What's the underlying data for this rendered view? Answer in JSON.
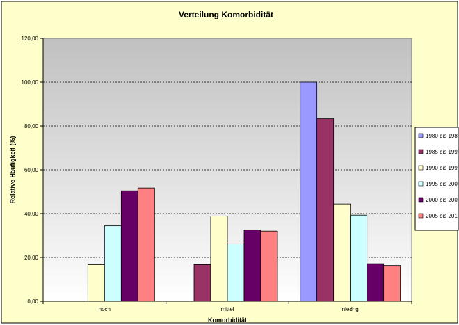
{
  "chart_data": {
    "type": "bar",
    "title": "Verteilung Komorbidität",
    "xlabel": "Komorbidität",
    "ylabel": "Relative Häufigkeit (%)",
    "categories": [
      "hoch",
      "mittel",
      "niedrig"
    ],
    "ylim": [
      0,
      120
    ],
    "yticks": [
      "0,00",
      "20,00",
      "40,00",
      "60,00",
      "80,00",
      "100,00",
      "120,00"
    ],
    "grid": true,
    "legend_position": "right",
    "series": [
      {
        "name": "1980 bis 198",
        "values": [
          0,
          0,
          100.0
        ],
        "color": "#9999ff"
      },
      {
        "name": "1985 bis 199",
        "values": [
          0,
          16.7,
          83.3
        ],
        "color": "#993366"
      },
      {
        "name": "1990 bis 199",
        "values": [
          16.7,
          38.9,
          44.4
        ],
        "color": "#ffffcc"
      },
      {
        "name": "1995 bis 200",
        "values": [
          34.4,
          26.2,
          39.3
        ],
        "color": "#ccffff"
      },
      {
        "name": "2000 bis 200",
        "values": [
          50.4,
          32.5,
          17.1
        ],
        "color": "#660066"
      },
      {
        "name": "2005 bis 201",
        "values": [
          51.7,
          32.0,
          16.3
        ],
        "color": "#ff8080"
      }
    ]
  },
  "style": {
    "outer_bg": "#ffffcc",
    "plot_bg_top": "#c0c0c0",
    "plot_bg_bottom": "#ffffff",
    "border": "#000000"
  }
}
